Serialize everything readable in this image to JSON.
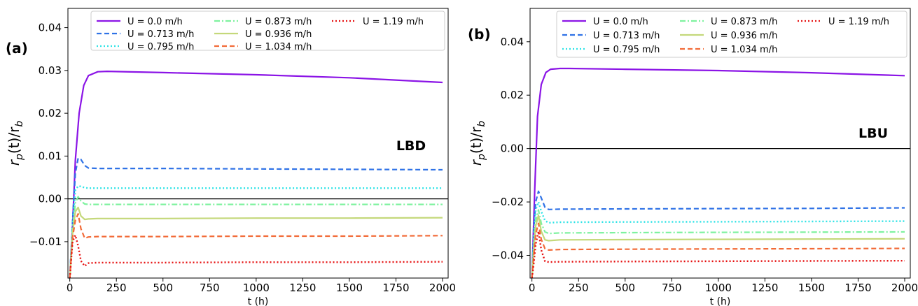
{
  "chart_data": [
    {
      "type": "line",
      "panel_label": "(a)",
      "annotation": "LBD",
      "xlabel": "t (h)",
      "ylabel_base": "r",
      "ylabel_sub1": "p",
      "ylabel_mid": "(t)/r",
      "ylabel_sub2": "b",
      "xlim": [
        -10,
        2030
      ],
      "ylim": [
        -0.0185,
        0.0445
      ],
      "xticks": [
        0,
        250,
        500,
        750,
        1000,
        1250,
        1500,
        1750,
        2000
      ],
      "xtick_labels": [
        "0",
        "250",
        "500",
        "750",
        "1000",
        "1250",
        "1500",
        "1750",
        "2000"
      ],
      "yticks": [
        -0.01,
        0.0,
        0.01,
        0.02,
        0.03,
        0.04
      ],
      "ytick_labels": [
        "−0.01",
        "0.00",
        "0.01",
        "0.02",
        "0.03",
        "0.04"
      ],
      "zero_line": true,
      "grid": false,
      "legend_location": "top-right",
      "series": [
        {
          "name": "U = 0.0 m/h",
          "color": "#8b14e6",
          "dash": "solid",
          "x": [
            0,
            15,
            30,
            50,
            75,
            100,
            150,
            200,
            500,
            1000,
            1500,
            2000
          ],
          "y": [
            -0.0185,
            -0.006,
            0.009,
            0.02,
            0.0265,
            0.0288,
            0.0297,
            0.0298,
            0.0295,
            0.029,
            0.0283,
            0.0272
          ]
        },
        {
          "name": "U = 0.713 m/h",
          "color": "#2f72e6",
          "dash": "dashed",
          "x": [
            0,
            15,
            30,
            45,
            60,
            80,
            100,
            150,
            500,
            1000,
            1500,
            2000
          ],
          "y": [
            -0.0185,
            -0.005,
            0.006,
            0.0095,
            0.0092,
            0.0078,
            0.0072,
            0.0071,
            0.0071,
            0.007,
            0.0069,
            0.0068
          ]
        },
        {
          "name": "U = 0.795 m/h",
          "color": "#2ee3e6",
          "dash": "dotted",
          "x": [
            0,
            15,
            30,
            45,
            60,
            80,
            100,
            150,
            500,
            1000,
            1500,
            2000
          ],
          "y": [
            -0.0185,
            -0.006,
            0.002,
            0.003,
            0.0029,
            0.0026,
            0.0025,
            0.0025,
            0.0025,
            0.0025,
            0.0025,
            0.0025
          ]
        },
        {
          "name": "U = 0.873 m/h",
          "color": "#7ef29f",
          "dash": "dashdot",
          "x": [
            0,
            15,
            30,
            45,
            60,
            80,
            100,
            150,
            500,
            1000,
            1500,
            2000
          ],
          "y": [
            -0.0185,
            -0.007,
            -0.001,
            0.0005,
            -0.0005,
            -0.0012,
            -0.0013,
            -0.0013,
            -0.0013,
            -0.0013,
            -0.0013,
            -0.0013
          ]
        },
        {
          "name": "U = 0.936 m/h",
          "color": "#c4d87a",
          "dash": "solid",
          "x": [
            0,
            15,
            30,
            45,
            60,
            80,
            100,
            150,
            500,
            1000,
            1500,
            2000
          ],
          "y": [
            -0.0185,
            -0.008,
            -0.003,
            -0.002,
            -0.004,
            -0.0048,
            -0.0047,
            -0.0046,
            -0.0046,
            -0.0045,
            -0.0045,
            -0.0044
          ]
        },
        {
          "name": "U = 1.034 m/h",
          "color": "#f26b38",
          "dash": "dashed",
          "x": [
            0,
            15,
            30,
            45,
            60,
            80,
            100,
            150,
            500,
            1000,
            1500,
            2000
          ],
          "y": [
            -0.0185,
            -0.009,
            -0.005,
            -0.0035,
            -0.007,
            -0.0092,
            -0.0089,
            -0.0088,
            -0.0088,
            -0.0087,
            -0.0087,
            -0.0086
          ]
        },
        {
          "name": "U = 1.19 m/h",
          "color": "#e61010",
          "dash": "dotted",
          "x": [
            0,
            15,
            30,
            45,
            60,
            80,
            100,
            150,
            500,
            1000,
            1500,
            2000
          ],
          "y": [
            -0.0185,
            -0.01,
            -0.0085,
            -0.011,
            -0.0145,
            -0.0157,
            -0.015,
            -0.0149,
            -0.0149,
            -0.0148,
            -0.0148,
            -0.0147
          ]
        }
      ]
    },
    {
      "type": "line",
      "panel_label": "(b)",
      "annotation": "LBU",
      "xlabel": "t (h)",
      "ylabel_base": "r",
      "ylabel_sub1": "p",
      "ylabel_mid": "(t)/r",
      "ylabel_sub2": "b",
      "xlim": [
        -10,
        2030
      ],
      "ylim": [
        -0.0485,
        0.0525
      ],
      "xticks": [
        0,
        250,
        500,
        750,
        1000,
        1250,
        1500,
        1750,
        2000
      ],
      "xtick_labels": [
        "0",
        "250",
        "500",
        "750",
        "1000",
        "1250",
        "1500",
        "1750",
        "2000"
      ],
      "yticks": [
        -0.04,
        -0.02,
        0.0,
        0.02,
        0.04
      ],
      "ytick_labels": [
        "−0.04",
        "−0.02",
        "0.00",
        "0.02",
        "0.04"
      ],
      "zero_line": true,
      "grid": false,
      "legend_location": "top-right",
      "series": [
        {
          "name": "U = 0.0 m/h",
          "color": "#8b14e6",
          "dash": "solid",
          "x": [
            0,
            15,
            30,
            50,
            75,
            100,
            150,
            200,
            500,
            1000,
            1500,
            2000
          ],
          "y": [
            -0.0485,
            -0.015,
            0.012,
            0.024,
            0.0285,
            0.0297,
            0.03,
            0.03,
            0.0297,
            0.0292,
            0.0284,
            0.0273
          ]
        },
        {
          "name": "U = 0.713 m/h",
          "color": "#2f72e6",
          "dash": "dashed",
          "x": [
            0,
            10,
            20,
            35,
            50,
            70,
            90,
            150,
            500,
            1000,
            1500,
            2000
          ],
          "y": [
            -0.0485,
            -0.03,
            -0.02,
            -0.016,
            -0.0185,
            -0.022,
            -0.0228,
            -0.0227,
            -0.0226,
            -0.0225,
            -0.0224,
            -0.0222
          ]
        },
        {
          "name": "U = 0.795 m/h",
          "color": "#2ee3e6",
          "dash": "dotted",
          "x": [
            0,
            10,
            20,
            35,
            50,
            70,
            90,
            150,
            500,
            1000,
            1500,
            2000
          ],
          "y": [
            -0.0485,
            -0.033,
            -0.023,
            -0.02,
            -0.0235,
            -0.027,
            -0.0278,
            -0.0276,
            -0.0275,
            -0.0274,
            -0.0273,
            -0.0272
          ]
        },
        {
          "name": "U = 0.873 m/h",
          "color": "#7ef29f",
          "dash": "dashdot",
          "x": [
            0,
            10,
            20,
            35,
            50,
            70,
            90,
            150,
            500,
            1000,
            1500,
            2000
          ],
          "y": [
            -0.0485,
            -0.036,
            -0.027,
            -0.023,
            -0.028,
            -0.0312,
            -0.0318,
            -0.0316,
            -0.0315,
            -0.0314,
            -0.0313,
            -0.0312
          ]
        },
        {
          "name": "U = 0.936 m/h",
          "color": "#c4d87a",
          "dash": "solid",
          "x": [
            0,
            10,
            20,
            35,
            50,
            70,
            90,
            150,
            500,
            1000,
            1500,
            2000
          ],
          "y": [
            -0.0485,
            -0.038,
            -0.029,
            -0.025,
            -0.031,
            -0.0342,
            -0.0345,
            -0.0342,
            -0.0341,
            -0.034,
            -0.0339,
            -0.0338
          ]
        },
        {
          "name": "U = 1.034 m/h",
          "color": "#f26b38",
          "dash": "dashed",
          "x": [
            0,
            10,
            20,
            35,
            50,
            70,
            90,
            150,
            500,
            1000,
            1500,
            2000
          ],
          "y": [
            -0.0485,
            -0.04,
            -0.032,
            -0.028,
            -0.034,
            -0.0375,
            -0.038,
            -0.0378,
            -0.0377,
            -0.0376,
            -0.0375,
            -0.0374
          ]
        },
        {
          "name": "U = 1.19 m/h",
          "color": "#e61010",
          "dash": "dotted",
          "x": [
            0,
            10,
            20,
            35,
            50,
            70,
            90,
            150,
            500,
            1000,
            1500,
            2000
          ],
          "y": [
            -0.0485,
            -0.043,
            -0.036,
            -0.031,
            -0.038,
            -0.0422,
            -0.0425,
            -0.0424,
            -0.0423,
            -0.0422,
            -0.0421,
            -0.042
          ]
        }
      ]
    }
  ]
}
